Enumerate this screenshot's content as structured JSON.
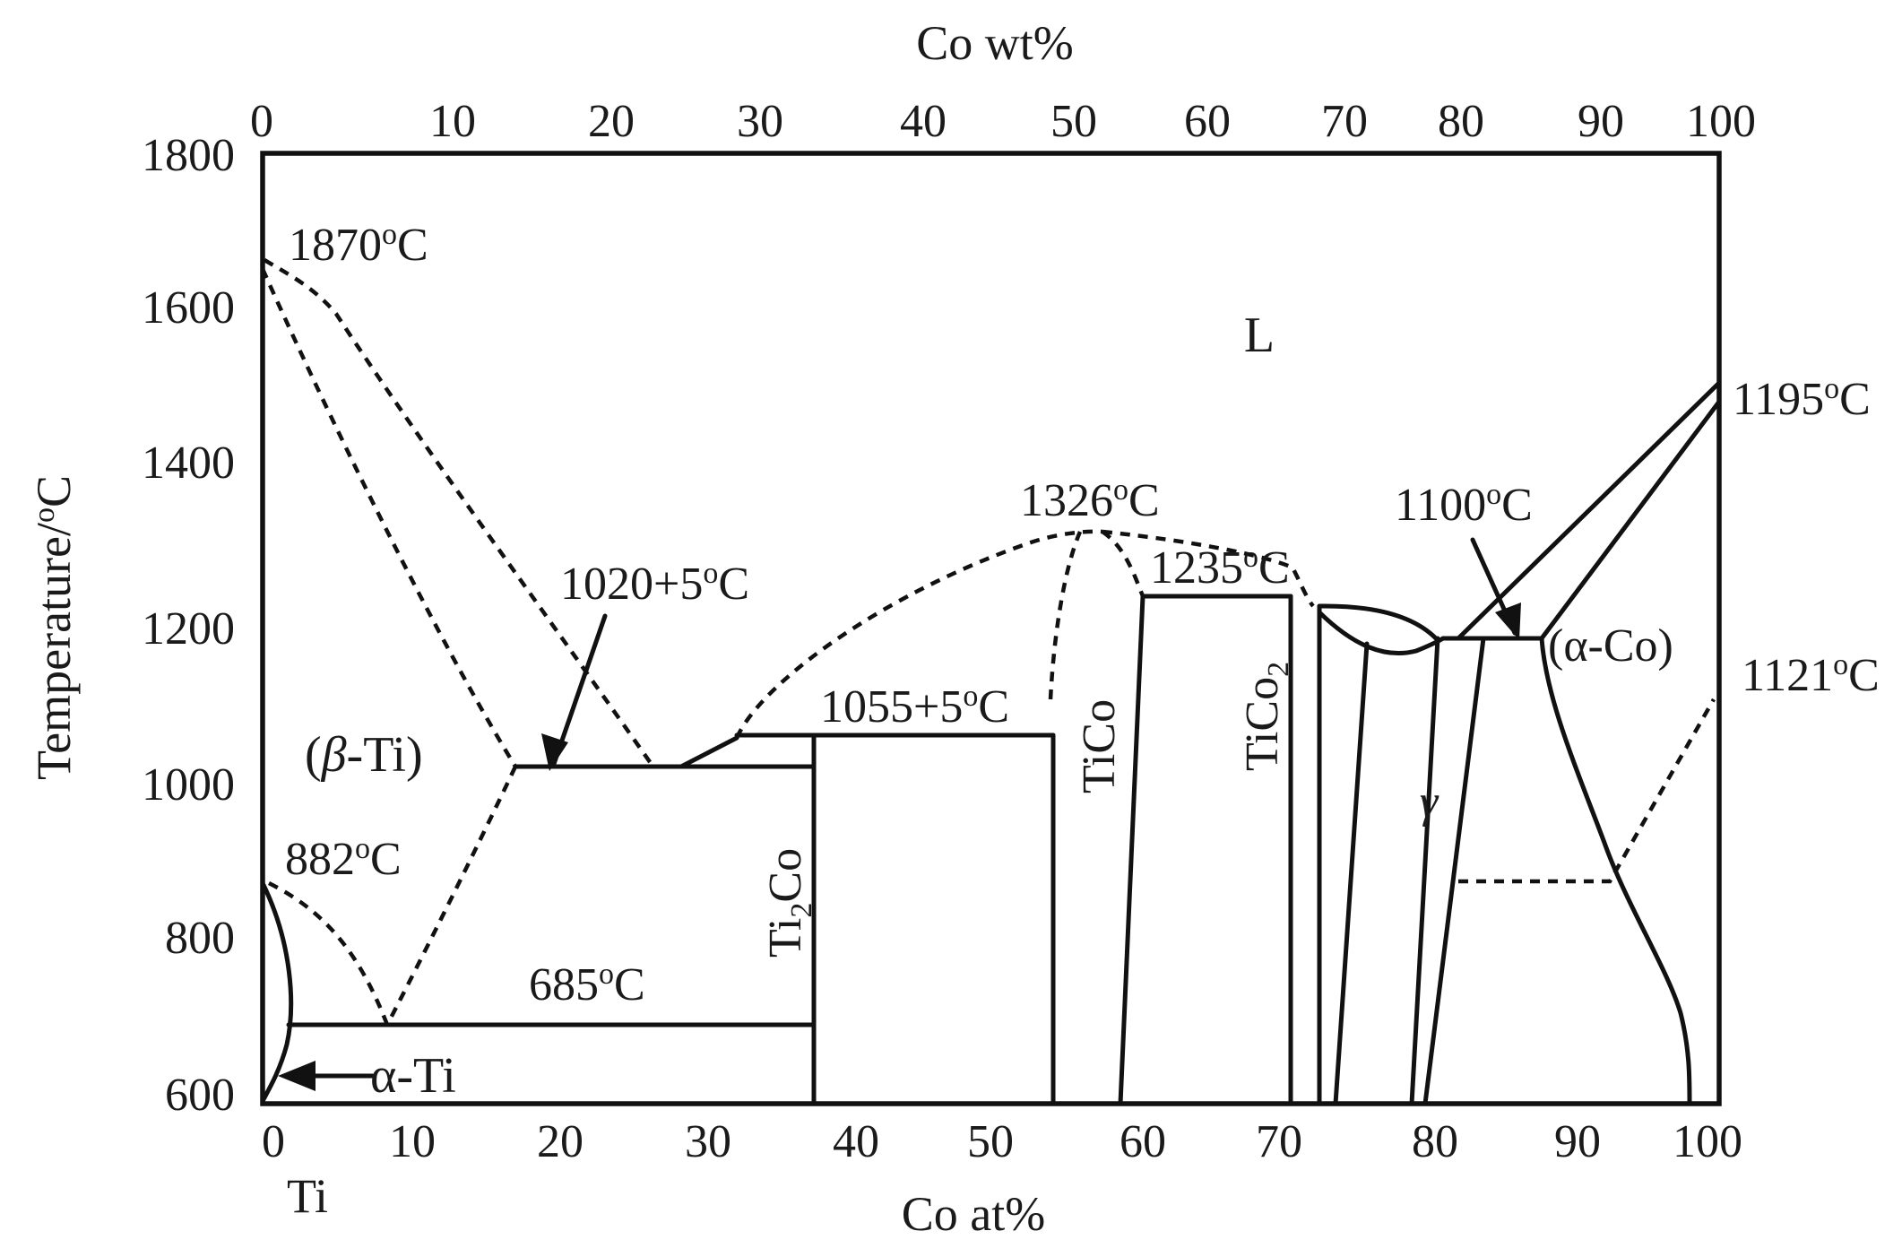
{
  "diagram": {
    "x_bottom_title": "Co at%",
    "x_top_title": "Co wt%",
    "y_title_main": "Temperature/",
    "y_title_sup": "o",
    "y_title_unit": "C",
    "element_label": "Ti",
    "x_bottom_ticks": [
      "0",
      "10",
      "20",
      "30",
      "40",
      "50",
      "60",
      "70",
      "80",
      "90",
      "100"
    ],
    "x_top_ticks": [
      "0",
      "10",
      "20",
      "30",
      "40",
      "50",
      "60",
      "70",
      "80",
      "90",
      "100"
    ],
    "y_ticks": [
      "1800",
      "1600",
      "1400",
      "1200",
      "1000",
      "800",
      "600"
    ]
  },
  "labels": {
    "liquid": "L",
    "beta_ti_prefix": "(",
    "beta_ti_greek": "β",
    "beta_ti_suffix": "-Ti)",
    "alpha_ti": "α-Ti",
    "alpha_co": "(α-Co)",
    "gamma": "γ",
    "ticoh": "TiCo",
    "tico2_main": "TiCo",
    "tico2_sub": "2",
    "ti2co_a": "Ti",
    "ti2co_sub": "2",
    "ti2co_b": "Co"
  },
  "temperatures": {
    "t1870": "1870",
    "t882": "882",
    "t685": "685",
    "t1020": "1020+5",
    "t1055": "1055+5",
    "t1326": "1326",
    "t1235": "1235",
    "t1100": "1100",
    "t1195": "1195",
    "t1121": "1121",
    "deg": "o",
    "unit": "C"
  }
}
